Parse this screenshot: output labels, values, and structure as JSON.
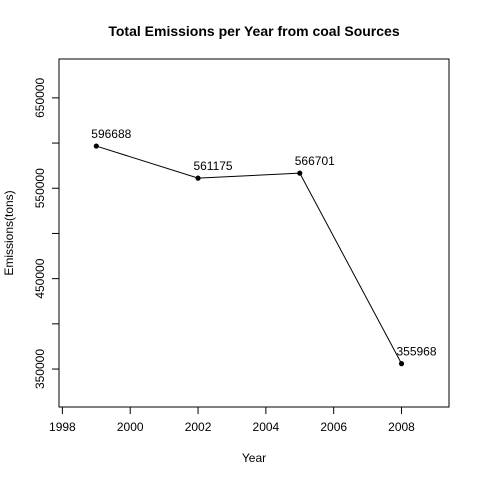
{
  "chart_data": {
    "type": "line",
    "title": "Total Emissions per Year from coal Sources",
    "xlabel": "Year",
    "ylabel": "Emissions(tons)",
    "x": [
      1999,
      2002,
      2005,
      2008
    ],
    "series": [
      {
        "values": [
          596688,
          561175,
          566701,
          355968
        ]
      }
    ],
    "data_labels": [
      "596688",
      "561175",
      "566701",
      "355968"
    ],
    "xlim": [
      1997.9,
      2009.4
    ],
    "ylim": [
      308000,
      693000
    ],
    "x_ticks": [
      1998,
      2000,
      2002,
      2004,
      2006,
      2008
    ],
    "x_tick_labels": [
      "1998",
      "2000",
      "2002",
      "2004",
      "2006",
      "2008"
    ],
    "y_ticks": [
      350000,
      400000,
      450000,
      500000,
      550000,
      600000,
      650000
    ],
    "y_tick_labels": [
      "350000",
      "",
      "450000",
      "",
      "550000",
      "",
      "650000"
    ],
    "grid": false,
    "legend": "none"
  }
}
